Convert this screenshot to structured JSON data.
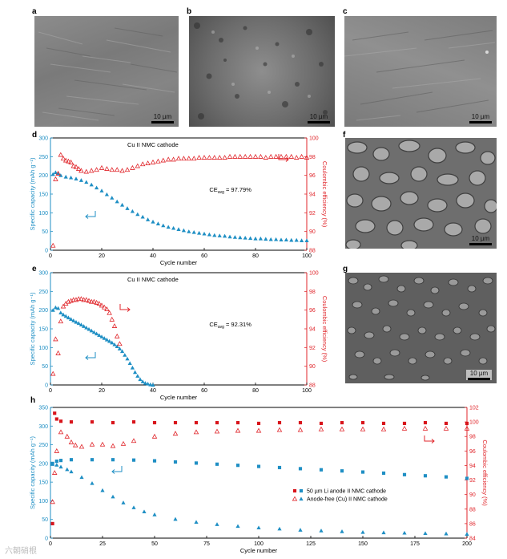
{
  "panel_labels": {
    "a": "a",
    "b": "b",
    "c": "c",
    "d": "d",
    "e": "e",
    "f": "f",
    "g": "g",
    "h": "h"
  },
  "scalebars": {
    "a": "10 µm",
    "b": "10 µm",
    "c": "10 µm",
    "f": "10 µm",
    "g": "10 µm"
  },
  "watermark": "六朝硝根",
  "colors": {
    "capacity": "#1f8fc4",
    "ce": "#e0262b",
    "li_ce": "#d8141b",
    "sem_dark": "#6a6a6a",
    "sem_mid": "#8a8a8a"
  },
  "chart_data": [
    {
      "id": "d",
      "type": "scatter",
      "title": "Cu  II NMC cathode",
      "xlabel": "Cycle number",
      "ylabel": "Specific capacity (mAh g⁻¹)",
      "y2label": "Coulombic efficiency (%)",
      "annotation": "CE_avg = 97.79%",
      "annotation_main": "CE",
      "annotation_sub": "avg",
      "annotation_tail": " = 97.79%",
      "xlim": [
        0,
        100
      ],
      "ylim": [
        0,
        300
      ],
      "y2lim": [
        88,
        100
      ],
      "xticks": [
        0,
        20,
        40,
        60,
        80,
        100
      ],
      "yticks": [
        0,
        50,
        100,
        150,
        200,
        250,
        300
      ],
      "y2ticks": [
        88,
        90,
        92,
        94,
        96,
        98,
        100
      ],
      "series": [
        {
          "axis": "left",
          "marker": "triangle-filled",
          "color": "#1f8fc4",
          "x": [
            1,
            2,
            3,
            4,
            6,
            8,
            10,
            12,
            14,
            16,
            18,
            20,
            22,
            24,
            26,
            28,
            30,
            32,
            34,
            36,
            38,
            40,
            42,
            44,
            46,
            48,
            50,
            52,
            54,
            56,
            58,
            60,
            62,
            64,
            66,
            68,
            70,
            72,
            74,
            76,
            78,
            80,
            82,
            84,
            86,
            88,
            90,
            92,
            94,
            96,
            98,
            100
          ],
          "y": [
            203,
            208,
            205,
            200,
            196,
            194,
            191,
            187,
            182,
            175,
            167,
            159,
            149,
            140,
            130,
            121,
            112,
            104,
            96,
            89,
            82,
            76,
            71,
            66,
            62,
            59,
            56,
            53,
            50,
            48,
            46,
            44,
            42,
            40,
            39,
            38,
            36,
            35,
            34,
            33,
            32,
            31,
            31,
            30,
            29,
            29,
            28,
            28,
            27,
            27,
            26,
            26
          ]
        },
        {
          "axis": "right",
          "marker": "triangle-open",
          "color": "#e0262b",
          "x": [
            1,
            2,
            3,
            4,
            5,
            6,
            7,
            8,
            9,
            10,
            11,
            12,
            14,
            16,
            18,
            20,
            22,
            24,
            26,
            28,
            30,
            32,
            34,
            36,
            38,
            40,
            42,
            44,
            46,
            48,
            50,
            52,
            54,
            56,
            58,
            60,
            62,
            64,
            66,
            68,
            70,
            72,
            74,
            76,
            78,
            80,
            82,
            84,
            86,
            88,
            90,
            92,
            94,
            96,
            98,
            100
          ],
          "y": [
            88.5,
            95.6,
            96.2,
            98.2,
            97.8,
            97.6,
            97.5,
            97.4,
            97.0,
            96.9,
            96.7,
            96.5,
            96.4,
            96.5,
            96.6,
            96.8,
            96.7,
            96.6,
            96.6,
            96.5,
            96.6,
            96.8,
            97.0,
            97.2,
            97.3,
            97.4,
            97.5,
            97.6,
            97.7,
            97.7,
            97.8,
            97.8,
            97.8,
            97.8,
            97.9,
            97.9,
            97.9,
            97.9,
            97.9,
            97.9,
            98.0,
            98.0,
            98.0,
            98.0,
            98.0,
            98.0,
            98.0,
            97.9,
            98.0,
            98.0,
            98.0,
            98.0,
            98.0,
            97.9,
            98.0,
            97.9
          ]
        }
      ]
    },
    {
      "id": "e",
      "type": "scatter",
      "title": "Cu  II NMC cathode",
      "xlabel": "Cycle number",
      "ylabel": "Specific capacity (mAh g⁻¹)",
      "y2label": "Coulombic efficiency (%)",
      "annotation": "CE_avg = 92.31%",
      "annotation_main": "CE",
      "annotation_sub": "avg",
      "annotation_tail": " = 92.31%",
      "xlim": [
        0,
        100
      ],
      "ylim": [
        0,
        300
      ],
      "y2lim": [
        88,
        100
      ],
      "xticks": [
        0,
        20,
        40,
        60,
        80,
        100
      ],
      "yticks": [
        0,
        50,
        100,
        150,
        200,
        250,
        300
      ],
      "y2ticks": [
        88,
        90,
        92,
        94,
        96,
        98,
        100
      ],
      "series": [
        {
          "axis": "left",
          "marker": "triangle-filled",
          "color": "#1f8fc4",
          "x": [
            1,
            2,
            3,
            4,
            5,
            6,
            7,
            8,
            9,
            10,
            11,
            12,
            13,
            14,
            15,
            16,
            17,
            18,
            19,
            20,
            21,
            22,
            23,
            24,
            25,
            26,
            27,
            28,
            29,
            30,
            31,
            32,
            33,
            34,
            35,
            36,
            37,
            38,
            39,
            40
          ],
          "y": [
            200,
            207,
            205,
            193,
            188,
            184,
            180,
            176,
            172,
            168,
            165,
            161,
            157,
            153,
            149,
            145,
            141,
            137,
            133,
            129,
            125,
            121,
            117,
            113,
            108,
            103,
            97,
            90,
            80,
            70,
            58,
            46,
            34,
            24,
            15,
            9,
            5,
            3,
            1,
            0
          ]
        },
        {
          "axis": "right",
          "marker": "triangle-open",
          "color": "#e0262b",
          "x": [
            1,
            2,
            3,
            4,
            5,
            6,
            7,
            8,
            9,
            10,
            11,
            12,
            13,
            14,
            15,
            16,
            17,
            18,
            19,
            20,
            21,
            22,
            23,
            24,
            25,
            26,
            27
          ],
          "y": [
            89.2,
            92.9,
            91.4,
            94.8,
            96.4,
            96.7,
            96.9,
            97.0,
            97.1,
            97.1,
            97.2,
            97.2,
            97.1,
            97.1,
            97.0,
            96.9,
            96.9,
            96.8,
            96.7,
            96.5,
            96.3,
            96.1,
            95.7,
            95.0,
            94.3,
            93.2,
            92.4
          ]
        }
      ]
    },
    {
      "id": "h",
      "type": "scatter",
      "xlabel": "Cycle number",
      "ylabel": "Specific capacity (mAh g⁻¹)",
      "y2label": "Coulombic efficiency (%)",
      "xlim": [
        0,
        200
      ],
      "ylim": [
        0,
        350
      ],
      "y2lim": [
        84,
        102
      ],
      "xticks": [
        0,
        25,
        50,
        75,
        100,
        125,
        150,
        175,
        200
      ],
      "yticks": [
        0,
        50,
        100,
        150,
        200,
        250,
        300,
        350
      ],
      "y2ticks": [
        84,
        86,
        88,
        90,
        92,
        94,
        96,
        98,
        100,
        102
      ],
      "legend": [
        "50 µm Li anode  II NMC cathode",
        "Anode-free (Cu) II NMC cathode"
      ],
      "series": [
        {
          "name": "50 µm Li anode  II NMC cathode",
          "axis": "left",
          "marker": "square-filled",
          "color": "#1f8fc4",
          "x": [
            1,
            3,
            5,
            10,
            20,
            30,
            40,
            50,
            60,
            70,
            80,
            90,
            100,
            110,
            120,
            130,
            140,
            150,
            160,
            170,
            180,
            190,
            200
          ],
          "y": [
            200,
            206,
            208,
            210,
            210,
            210,
            209,
            207,
            204,
            201,
            198,
            195,
            192,
            189,
            186,
            183,
            180,
            177,
            174,
            170,
            167,
            164,
            160
          ]
        },
        {
          "name": "Anode-free (Cu) II NMC cathode",
          "axis": "left",
          "marker": "triangle-filled",
          "color": "#1f8fc4",
          "x": [
            1,
            3,
            5,
            8,
            10,
            15,
            20,
            25,
            30,
            35,
            40,
            45,
            50,
            60,
            70,
            80,
            90,
            100,
            110,
            120,
            130,
            140,
            150,
            160,
            170,
            180,
            190,
            200
          ],
          "y": [
            198,
            196,
            191,
            184,
            178,
            163,
            147,
            128,
            111,
            95,
            82,
            71,
            63,
            51,
            43,
            37,
            32,
            28,
            25,
            22,
            20,
            18,
            16,
            15,
            14,
            13,
            12,
            11
          ]
        },
        {
          "name": "50 µm Li anode  II NMC cathode",
          "axis": "right",
          "marker": "square-filled",
          "color": "#d8141b",
          "x": [
            1,
            2,
            3,
            5,
            10,
            20,
            30,
            40,
            50,
            60,
            70,
            80,
            90,
            100,
            110,
            120,
            130,
            140,
            150,
            160,
            170,
            180,
            190,
            200
          ],
          "y": [
            86.0,
            101.2,
            100.4,
            100.1,
            100.0,
            100.0,
            99.9,
            100.0,
            99.9,
            99.9,
            99.9,
            99.9,
            99.9,
            99.8,
            99.9,
            99.9,
            99.8,
            99.9,
            99.9,
            99.8,
            99.8,
            99.9,
            99.8,
            99.8
          ]
        },
        {
          "name": "Anode-free (Cu) II NMC cathode",
          "axis": "right",
          "marker": "triangle-open",
          "color": "#e0262b",
          "x": [
            1,
            2,
            3,
            5,
            8,
            10,
            12,
            15,
            20,
            25,
            30,
            35,
            40,
            50,
            60,
            70,
            80,
            90,
            100,
            110,
            120,
            130,
            140,
            150,
            160,
            170,
            180,
            190,
            200
          ],
          "y": [
            89.0,
            93.0,
            96.0,
            98.6,
            98.0,
            97.2,
            96.8,
            96.6,
            96.9,
            96.9,
            96.7,
            97.0,
            97.4,
            98.0,
            98.4,
            98.6,
            98.7,
            98.8,
            98.8,
            98.9,
            98.9,
            99.0,
            99.0,
            99.0,
            99.0,
            99.1,
            99.1,
            99.1,
            99.1
          ]
        }
      ]
    }
  ]
}
